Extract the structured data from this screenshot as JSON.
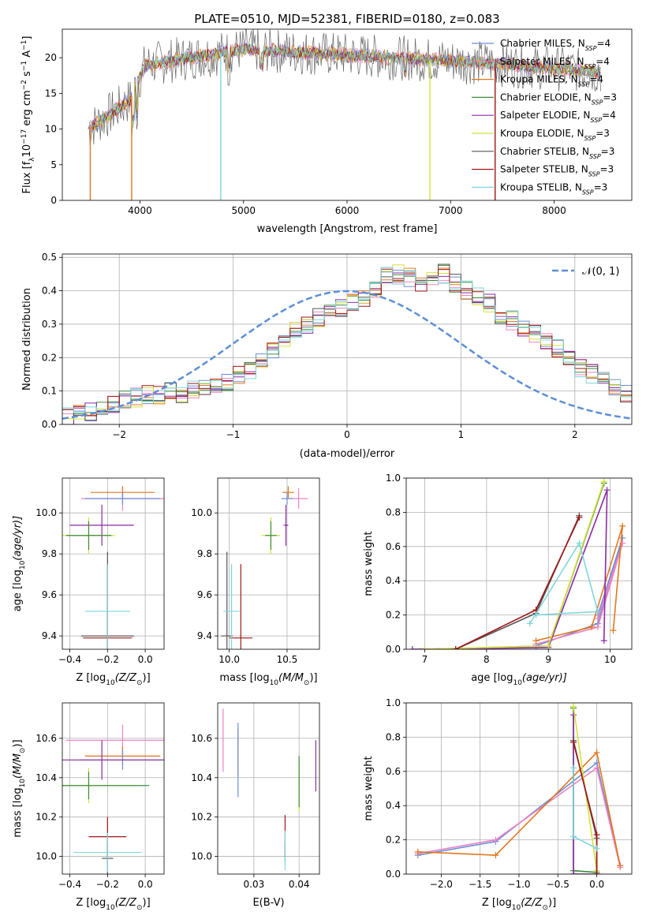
{
  "colors": {
    "chabrier_miles": "#6b8fd6",
    "salpeter_miles": "#ee82c4",
    "kroupa_miles": "#e0781e",
    "chabrier_elodie": "#3d8b3d",
    "salpeter_elodie": "#8b2aa3",
    "kroupa_elodie": "#d6e23a",
    "chabrier_stelib": "#555555",
    "salpeter_stelib": "#a01616",
    "kroupa_stelib": "#7fd6dc",
    "grid": "#b0b0b0",
    "normal_curve": "#5b8fd6"
  },
  "chart_data": [
    {
      "id": "spectrum",
      "type": "line",
      "title": "PLATE=0510, MJD=52381, FIBERID=0180, z=0.083",
      "xlabel": "wavelength [Angstrom, rest frame]",
      "ylabel_main": "Flux [f",
      "ylabel_sub": "λ",
      "ylabel_rest": "10",
      "ylabel_exp": "−17",
      "ylabel_units": " erg cm",
      "ylabel_exp2": "−2",
      "ylabel_s": " s",
      "ylabel_exp3": "−1",
      "ylabel_A": " A",
      "ylabel_exp4": "−1",
      "ylabel_end": "]",
      "xlim": [
        3250,
        8750
      ],
      "ylim": [
        0,
        24
      ],
      "xticks": [
        "4000",
        "5000",
        "6000",
        "7000",
        "8000"
      ],
      "yticks": [
        "0",
        "5",
        "10",
        "15",
        "20"
      ],
      "x_range_data": [
        3500,
        8450
      ],
      "gap_markers": [
        3520,
        3920,
        4780,
        6800,
        7430
      ],
      "legend": [
        {
          "name": "Chabrier MILES, N",
          "sub": "SSP",
          "tail": "=4",
          "color_key": "chabrier_miles"
        },
        {
          "name": "Salpeter MILES, N",
          "sub": "SSP",
          "tail": "=4",
          "color_key": "salpeter_miles"
        },
        {
          "name": "Kroupa MILES, N",
          "sub": "SSP",
          "tail": "=4",
          "color_key": "kroupa_miles"
        },
        {
          "name": "Chabrier ELODIE, N",
          "sub": "SSP",
          "tail": "=3",
          "color_key": "chabrier_elodie"
        },
        {
          "name": "Salpeter ELODIE, N",
          "sub": "SSP",
          "tail": "=4",
          "color_key": "salpeter_elodie"
        },
        {
          "name": "Kroupa ELODIE, N",
          "sub": "SSP",
          "tail": "=3",
          "color_key": "kroupa_elodie"
        },
        {
          "name": "Chabrier STELIB, N",
          "sub": "SSP",
          "tail": "=3",
          "color_key": "chabrier_stelib"
        },
        {
          "name": "Salpeter STELIB, N",
          "sub": "SSP",
          "tail": "=3",
          "color_key": "salpeter_stelib"
        },
        {
          "name": "Kroupa STELIB, N",
          "sub": "SSP",
          "tail": "=3",
          "color_key": "kroupa_stelib"
        }
      ]
    },
    {
      "id": "residuals",
      "type": "line",
      "xlabel": "(data-model)/error",
      "ylabel": "Normed distribution",
      "xlim": [
        -2.5,
        2.5
      ],
      "ylim": [
        0,
        0.51
      ],
      "xticks": [
        {
          "v": -2,
          "t": "−2"
        },
        {
          "v": -1,
          "t": "−1"
        },
        {
          "v": 0,
          "t": "0"
        },
        {
          "v": 1,
          "t": "1"
        },
        {
          "v": 2,
          "t": "2"
        }
      ],
      "yticks": [
        {
          "v": 0,
          "t": "0.0"
        },
        {
          "v": 0.1,
          "t": "0.1"
        },
        {
          "v": 0.2,
          "t": "0.2"
        },
        {
          "v": 0.3,
          "t": "0.3"
        },
        {
          "v": 0.4,
          "t": "0.4"
        },
        {
          "v": 0.5,
          "t": "0.5"
        }
      ],
      "grid": true,
      "legend_label": "𝒩(0, 1)",
      "legend_position": "top-right",
      "bin_width": 0.1,
      "bin_start": -2.5,
      "base_values": [
        0.02,
        0.03,
        0.04,
        0.05,
        0.06,
        0.07,
        0.08,
        0.09,
        0.09,
        0.1,
        0.09,
        0.1,
        0.11,
        0.12,
        0.13,
        0.15,
        0.16,
        0.19,
        0.22,
        0.25,
        0.29,
        0.3,
        0.32,
        0.34,
        0.35,
        0.37,
        0.38,
        0.4,
        0.44,
        0.45,
        0.44,
        0.42,
        0.43,
        0.45,
        0.42,
        0.4,
        0.38,
        0.36,
        0.33,
        0.31,
        0.29,
        0.27,
        0.25,
        0.23,
        0.2,
        0.17,
        0.15,
        0.13,
        0.11,
        0.09,
        0.07,
        0.06,
        0.05,
        0.04,
        0.03
      ],
      "normal": {
        "mu": 0,
        "sigma": 1
      }
    },
    {
      "id": "age_vs_Z",
      "type": "scatter",
      "xlabel": "Z [log",
      "xlabel_sub": "10",
      "xlabel_tail": "(Z/Z",
      "xlabel_sun": "⊙",
      "xlabel_end": ")]",
      "ylabel": "age  [log",
      "ylabel_sub": "10",
      "ylabel_tail": "(age/yr)]",
      "xlim": [
        -0.44,
        0.1
      ],
      "ylim": [
        9.335,
        10.17
      ],
      "xticks": [
        {
          "v": -0.4,
          "t": "−0.4"
        },
        {
          "v": -0.2,
          "t": "−0.2"
        },
        {
          "v": 0,
          "t": "0.0"
        }
      ],
      "yticks": [
        {
          "v": 9.4,
          "t": "9.4"
        },
        {
          "v": 9.6,
          "t": "9.6"
        },
        {
          "v": 9.8,
          "t": "9.8"
        },
        {
          "v": 10.0,
          "t": "10.0"
        }
      ],
      "points": [
        {
          "c": "salpeter_miles",
          "x": -0.12,
          "y": 10.07,
          "xerr": 0.22,
          "yerr": 0.06
        },
        {
          "c": "kroupa_miles",
          "x": -0.12,
          "y": 10.1,
          "xerr": 0.17,
          "yerr": 0.03
        },
        {
          "c": "chabrier_miles",
          "x": -0.12,
          "y": 10.07,
          "xerr": 0.2,
          "yerr": 0.03
        },
        {
          "c": "salpeter_elodie",
          "x": -0.23,
          "y": 9.94,
          "xerr": 0.17,
          "yerr": 0.1
        },
        {
          "c": "kroupa_elodie",
          "x": -0.3,
          "y": 9.89,
          "xerr": 0.14,
          "yerr": 0.09
        },
        {
          "c": "chabrier_elodie",
          "x": -0.3,
          "y": 9.89,
          "xerr": 0.12,
          "yerr": 0.07
        },
        {
          "c": "chabrier_stelib",
          "x": -0.2,
          "y": 9.4,
          "xerr": 0.14,
          "yerr": 0.41
        },
        {
          "c": "salpeter_stelib",
          "x": -0.2,
          "y": 9.39,
          "xerr": 0.13,
          "yerr": 0.36
        },
        {
          "c": "kroupa_stelib",
          "x": -0.2,
          "y": 9.52,
          "xerr": 0.12,
          "yerr": 0.23
        }
      ]
    },
    {
      "id": "age_vs_mass",
      "type": "scatter",
      "xlabel": "mass [log",
      "xlabel_sub": "10",
      "xlabel_tail": "(M/M",
      "xlabel_sun": "⊙",
      "xlabel_end": ")]",
      "xlim": [
        9.9,
        10.78
      ],
      "ylim": [
        9.335,
        10.17
      ],
      "xticks": [
        {
          "v": 10.0,
          "t": "10.0"
        },
        {
          "v": 10.5,
          "t": "10.5"
        }
      ],
      "yticks": [
        {
          "v": 9.4,
          "t": "9.4"
        },
        {
          "v": 9.6,
          "t": "9.6"
        },
        {
          "v": 9.8,
          "t": "9.8"
        },
        {
          "v": 10.0,
          "t": "10.0"
        }
      ],
      "points": [
        {
          "c": "salpeter_miles",
          "x": 10.6,
          "y": 10.07,
          "xerr": 0.08,
          "yerr": 0.05
        },
        {
          "c": "kroupa_miles",
          "x": 10.51,
          "y": 10.1,
          "xerr": 0.05,
          "yerr": 0.03
        },
        {
          "c": "chabrier_miles",
          "x": 10.5,
          "y": 10.07,
          "xerr": 0.05,
          "yerr": 0.03
        },
        {
          "c": "salpeter_elodie",
          "x": 10.49,
          "y": 9.94,
          "xerr": 0.02,
          "yerr": 0.1
        },
        {
          "c": "kroupa_elodie",
          "x": 10.36,
          "y": 9.89,
          "xerr": 0.08,
          "yerr": 0.09
        },
        {
          "c": "chabrier_elodie",
          "x": 10.36,
          "y": 9.89,
          "xerr": 0.05,
          "yerr": 0.07
        },
        {
          "c": "chabrier_stelib",
          "x": 9.98,
          "y": 9.4,
          "xerr": 0.05,
          "yerr": 0.41
        },
        {
          "c": "salpeter_stelib",
          "x": 10.1,
          "y": 9.39,
          "xerr": 0.1,
          "yerr": 0.36
        },
        {
          "c": "kroupa_stelib",
          "x": 10.02,
          "y": 9.52,
          "xerr": 0.07,
          "yerr": 0.23
        }
      ]
    },
    {
      "id": "weight_vs_age",
      "type": "line",
      "xlabel": "age  [log",
      "xlabel_sub": "10",
      "xlabel_tail": "(age/yr)]",
      "ylabel": "mass weight",
      "xlim": [
        6.7,
        10.35
      ],
      "ylim": [
        0,
        1.0
      ],
      "grid": true,
      "xticks": [
        {
          "v": 7,
          "t": "7"
        },
        {
          "v": 8,
          "t": "8"
        },
        {
          "v": 9,
          "t": "9"
        },
        {
          "v": 10,
          "t": "10"
        }
      ],
      "yticks": [
        {
          "v": 0,
          "t": "0.0"
        },
        {
          "v": 0.2,
          "t": "0.2"
        },
        {
          "v": 0.4,
          "t": "0.4"
        },
        {
          "v": 0.6,
          "t": "0.6"
        },
        {
          "v": 0.8,
          "t": "0.8"
        },
        {
          "v": 1.0,
          "t": "1.0"
        }
      ],
      "series": [
        {
          "c": "chabrier_miles",
          "x": [
            8.8,
            9.8,
            10.2,
            9.8
          ],
          "y": [
            0.02,
            0.15,
            0.65,
            0.2
          ]
        },
        {
          "c": "salpeter_miles",
          "x": [
            8.8,
            9.8,
            10.2,
            9.8
          ],
          "y": [
            0.03,
            0.13,
            0.62,
            0.18
          ]
        },
        {
          "c": "kroupa_miles",
          "x": [
            8.8,
            9.7,
            10.2,
            10.05
          ],
          "y": [
            0.05,
            0.13,
            0.72,
            0.11
          ]
        },
        {
          "c": "chabrier_elodie",
          "x": [
            7.0,
            9.0,
            9.9
          ],
          "y": [
            0.0,
            0.02,
            0.97
          ]
        },
        {
          "c": "salpeter_elodie",
          "x": [
            6.8,
            9.0,
            9.95,
            9.9
          ],
          "y": [
            0.0,
            0.01,
            0.93,
            0.05
          ]
        },
        {
          "c": "kroupa_elodie",
          "x": [
            7.0,
            9.0,
            9.9
          ],
          "y": [
            0.0,
            0.02,
            0.98
          ]
        },
        {
          "c": "chabrier_stelib",
          "x": [
            7.5,
            8.8,
            9.5
          ],
          "y": [
            0.0,
            0.21,
            0.78
          ]
        },
        {
          "c": "salpeter_stelib",
          "x": [
            7.5,
            8.8,
            9.5
          ],
          "y": [
            0.0,
            0.23,
            0.77
          ]
        },
        {
          "c": "kroupa_stelib",
          "x": [
            8.7,
            9.5,
            9.8,
            8.8
          ],
          "y": [
            0.15,
            0.62,
            0.22,
            0.2
          ]
        }
      ]
    },
    {
      "id": "mass_vs_Z",
      "type": "scatter",
      "xlabel": "Z [log",
      "xlabel_sub": "10",
      "xlabel_tail": "(Z/Z",
      "xlabel_sun": "⊙",
      "xlabel_end": ")]",
      "ylabel": "mass [log",
      "ylabel_sub": "10",
      "ylabel_tail": "(M/M",
      "ylabel_sun": "⊙",
      "ylabel_end": ")]",
      "xlim": [
        -0.44,
        0.1
      ],
      "ylim": [
        9.91,
        10.78
      ],
      "xticks": [
        {
          "v": -0.4,
          "t": "−0.4"
        },
        {
          "v": -0.2,
          "t": "−0.2"
        },
        {
          "v": 0,
          "t": "0.0"
        }
      ],
      "yticks": [
        {
          "v": 10.0,
          "t": "10.0"
        },
        {
          "v": 10.2,
          "t": "10.2"
        },
        {
          "v": 10.4,
          "t": "10.4"
        },
        {
          "v": 10.6,
          "t": "10.6"
        }
      ],
      "points": [
        {
          "c": "salpeter_miles",
          "x": -0.12,
          "y": 10.59,
          "xerr": 0.3,
          "yerr": 0.08
        },
        {
          "c": "kroupa_miles",
          "x": -0.12,
          "y": 10.51,
          "xerr": 0.2,
          "yerr": 0.05
        },
        {
          "c": "chabrier_miles",
          "x": -0.12,
          "y": 10.49,
          "xerr": 0.22,
          "yerr": 0.05
        },
        {
          "c": "salpeter_elodie",
          "x": -0.23,
          "y": 10.49,
          "xerr": 0.33,
          "yerr": 0.1
        },
        {
          "c": "kroupa_elodie",
          "x": -0.3,
          "y": 10.36,
          "xerr": 0.25,
          "yerr": 0.09
        },
        {
          "c": "chabrier_elodie",
          "x": -0.3,
          "y": 10.36,
          "xerr": 0.32,
          "yerr": 0.07
        },
        {
          "c": "chabrier_stelib",
          "x": -0.2,
          "y": 9.99,
          "xerr": 0.03,
          "yerr": 0.08
        },
        {
          "c": "salpeter_stelib",
          "x": -0.2,
          "y": 10.1,
          "xerr": 0.1,
          "yerr": 0.1
        },
        {
          "c": "kroupa_stelib",
          "x": -0.2,
          "y": 10.02,
          "xerr": 0.18,
          "yerr": 0.1
        }
      ]
    },
    {
      "id": "mass_vs_ebv",
      "type": "scatter",
      "xlabel": "E(B-V)",
      "xlim": [
        0.022,
        0.0445
      ],
      "ylim": [
        9.91,
        10.78
      ],
      "xticks": [
        {
          "v": 0.03,
          "t": "0.03"
        },
        {
          "v": 0.04,
          "t": "0.04"
        }
      ],
      "yticks": [
        {
          "v": 10.0,
          "t": "10.0"
        },
        {
          "v": 10.2,
          "t": "10.2"
        },
        {
          "v": 10.4,
          "t": "10.4"
        },
        {
          "v": 10.6,
          "t": "10.6"
        }
      ],
      "points": [
        {
          "c": "salpeter_miles",
          "x": 0.0232,
          "y": 10.59,
          "xerr": 0,
          "yerr": 0.16
        },
        {
          "c": "kroupa_miles",
          "x": 0.0265,
          "y": 10.53,
          "xerr": 0,
          "yerr": 0.12
        },
        {
          "c": "chabrier_miles",
          "x": 0.0265,
          "y": 10.49,
          "xerr": 0,
          "yerr": 0.19
        },
        {
          "c": "salpeter_elodie",
          "x": 0.0437,
          "y": 10.46,
          "xerr": 0,
          "yerr": 0.13
        },
        {
          "c": "kroupa_elodie",
          "x": 0.04,
          "y": 10.35,
          "xerr": 0,
          "yerr": 0.12
        },
        {
          "c": "chabrier_elodie",
          "x": 0.04,
          "y": 10.38,
          "xerr": 0,
          "yerr": 0.13
        },
        {
          "c": "chabrier_stelib",
          "x": 0.0369,
          "y": 10.02,
          "xerr": 0,
          "yerr": 0.05
        },
        {
          "c": "salpeter_stelib",
          "x": 0.0369,
          "y": 10.1,
          "xerr": 0,
          "yerr": 0.11
        },
        {
          "c": "kroupa_stelib",
          "x": 0.0369,
          "y": 10.03,
          "xerr": 0,
          "yerr": 0.1
        }
      ]
    },
    {
      "id": "weight_vs_Z",
      "type": "line",
      "xlabel": "Z [log",
      "xlabel_sub": "10",
      "xlabel_tail": "(Z/Z",
      "xlabel_sun": "⊙",
      "xlabel_end": ")]",
      "ylabel": "mass weight",
      "xlim": [
        -2.45,
        0.45
      ],
      "ylim": [
        0,
        1.0
      ],
      "grid": true,
      "xticks": [
        {
          "v": -2.0,
          "t": "−2.0"
        },
        {
          "v": -1.5,
          "t": "−1.5"
        },
        {
          "v": -1.0,
          "t": "−1.0"
        },
        {
          "v": -0.5,
          "t": "−0.5"
        },
        {
          "v": 0.0,
          "t": "0.0"
        }
      ],
      "yticks": [
        {
          "v": 0,
          "t": "0.0"
        },
        {
          "v": 0.2,
          "t": "0.2"
        },
        {
          "v": 0.4,
          "t": "0.4"
        },
        {
          "v": 0.6,
          "t": "0.6"
        },
        {
          "v": 0.8,
          "t": "0.8"
        },
        {
          "v": 1.0,
          "t": "1.0"
        }
      ],
      "series": [
        {
          "c": "chabrier_miles",
          "x": [
            -2.3,
            -1.3,
            0.0,
            0.3
          ],
          "y": [
            0.11,
            0.19,
            0.65,
            0.05
          ]
        },
        {
          "c": "salpeter_miles",
          "x": [
            -2.3,
            -1.3,
            0.0,
            0.3
          ],
          "y": [
            0.12,
            0.2,
            0.62,
            0.04
          ]
        },
        {
          "c": "kroupa_miles",
          "x": [
            -2.3,
            -1.3,
            0.0,
            0.3
          ],
          "y": [
            0.13,
            0.11,
            0.71,
            0.05
          ]
        },
        {
          "c": "chabrier_elodie",
          "x": [
            -0.3,
            -0.3,
            0.0
          ],
          "y": [
            0.97,
            0.02,
            0.01
          ]
        },
        {
          "c": "salpeter_elodie",
          "x": [
            -0.3,
            -0.3,
            0.0
          ],
          "y": [
            0.93,
            0.0,
            0.0
          ]
        },
        {
          "c": "kroupa_elodie",
          "x": [
            -0.3,
            0.0,
            0.0
          ],
          "y": [
            0.98,
            0.02,
            0.0
          ]
        },
        {
          "c": "chabrier_stelib",
          "x": [
            -0.3,
            0.0,
            0.0
          ],
          "y": [
            0.78,
            0.21,
            0.0
          ]
        },
        {
          "c": "salpeter_stelib",
          "x": [
            -0.3,
            0.0,
            0.0
          ],
          "y": [
            0.77,
            0.23,
            0.0
          ]
        },
        {
          "c": "kroupa_stelib",
          "x": [
            -0.3,
            -0.3,
            0.0
          ],
          "y": [
            0.62,
            0.22,
            0.15
          ]
        }
      ]
    }
  ]
}
